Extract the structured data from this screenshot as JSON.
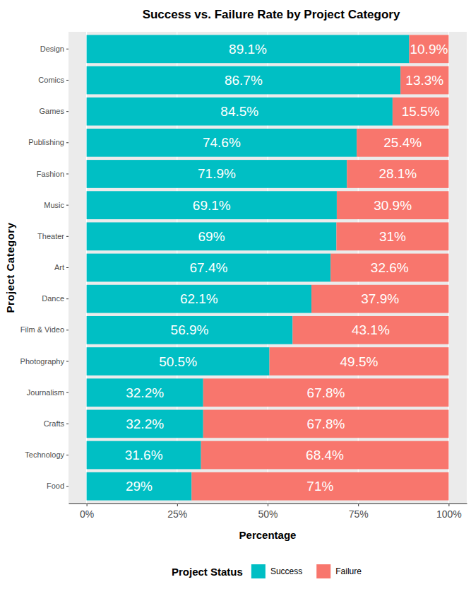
{
  "chart_data": {
    "type": "bar",
    "title": "Success vs. Failure Rate by Project Category",
    "x_label": "Percentage",
    "y_label": "Project Category",
    "legend_title": "Project Status",
    "orientation": "horizontal",
    "stacked": true,
    "data_labels": true,
    "grid": true,
    "legend": "bottom",
    "categories": [
      "Design",
      "Comics",
      "Games",
      "Publishing",
      "Fashion",
      "Music",
      "Theater",
      "Art",
      "Dance",
      "Film & Video",
      "Photography",
      "Journalism",
      "Crafts",
      "Technology",
      "Food"
    ],
    "series": [
      {
        "name": "Success",
        "color": "#00BFC4",
        "values": [
          89.1,
          86.7,
          84.5,
          74.6,
          71.9,
          69.1,
          69,
          67.4,
          62.1,
          56.9,
          50.5,
          32.2,
          32.2,
          31.6,
          29
        ],
        "value_labels": [
          "89.1%",
          "86.7%",
          "84.5%",
          "74.6%",
          "71.9%",
          "69.1%",
          "69%",
          "67.4%",
          "62.1%",
          "56.9%",
          "50.5%",
          "32.2%",
          "32.2%",
          "31.6%",
          "29%"
        ]
      },
      {
        "name": "Failure",
        "color": "#F8766D",
        "values": [
          10.9,
          13.3,
          15.5,
          25.4,
          28.1,
          30.9,
          31,
          32.6,
          37.9,
          43.1,
          49.5,
          67.8,
          67.8,
          68.4,
          71
        ],
        "value_labels": [
          "10.9%",
          "13.3%",
          "15.5%",
          "25.4%",
          "28.1%",
          "30.9%",
          "31%",
          "32.6%",
          "37.9%",
          "43.1%",
          "49.5%",
          "67.8%",
          "67.8%",
          "68.4%",
          "71%"
        ]
      }
    ],
    "xlim": [
      -5,
      105
    ],
    "xticks": [
      {
        "value": 0,
        "label": "0%"
      },
      {
        "value": 25,
        "label": "25%"
      },
      {
        "value": 50,
        "label": "50%"
      },
      {
        "value": 75,
        "label": "75%"
      },
      {
        "value": 100,
        "label": "100%"
      }
    ]
  }
}
